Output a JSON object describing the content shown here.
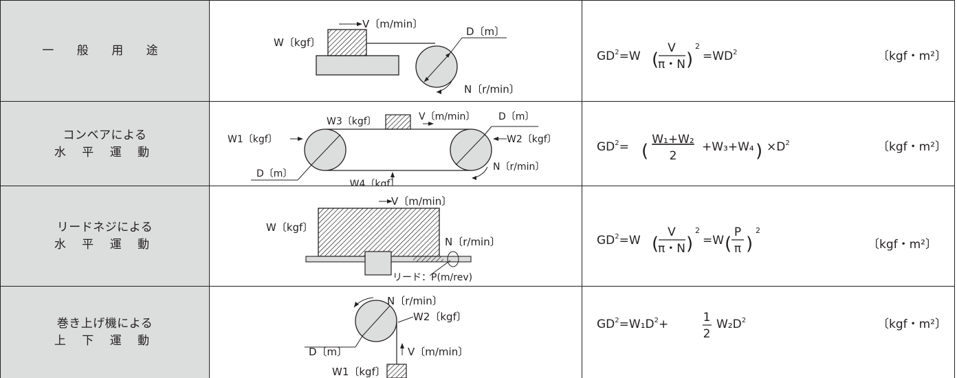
{
  "rows": [
    {
      "label_lines": [
        "一 般 用 途"
      ],
      "figure": {
        "speed": "V〔m/min〕",
        "mass": "W〔kgf〕",
        "diameter": "D〔m〕",
        "rpm": "N〔r/min〕"
      },
      "formula": {
        "lhs": "GD",
        "eq": "=W",
        "frac_num": "V",
        "frac_den": "π・N",
        "power": "2",
        "rhs": "=WD",
        "rhs_pow": "2"
      },
      "unit": "〔kgf・m²〕"
    },
    {
      "label_lines": [
        "コンベアによる",
        "水 平 運 動"
      ],
      "figure": {
        "w3": "W3〔kgf〕",
        "speed": "V〔m/min〕",
        "diameter_top": "D〔m〕",
        "w1": "W1〔kgf〕",
        "w2": "W2〔kgf〕",
        "diameter_bottom": "D〔m〕",
        "rpm": "N〔r/min〕",
        "w4": "W4〔kgf〕"
      },
      "formula": {
        "lhs": "GD",
        "eq": "=",
        "frac_num": "W₁+W₂",
        "frac_den": "2",
        "plus": "+W₃+W₄",
        "times": "×D",
        "rhs_pow": "2"
      },
      "unit": "〔kgf・m²〕"
    },
    {
      "label_lines": [
        "リードネジによる",
        "水 平 運 動"
      ],
      "figure": {
        "speed": "V〔m/min〕",
        "mass": "W〔kgf〕",
        "rpm": "N〔r/min〕",
        "lead": "リード：P(m/rev)"
      },
      "formula": {
        "lhs": "GD",
        "eq": "=W",
        "frac_num": "V",
        "frac_den": "π・N",
        "power": "2",
        "eq2": "=W",
        "frac2_num": "P",
        "frac2_den": "π",
        "power2": "2"
      },
      "unit": "〔kgf・m²〕"
    },
    {
      "label_lines": [
        "巻き上げ機による",
        "上 下 運 動"
      ],
      "figure": {
        "rpm": "N〔r/min〕",
        "w2": "W2〔kgf〕",
        "diameter": "D〔m〕",
        "speed": "V〔m/min〕",
        "w1": "W1〔kgf〕"
      },
      "formula": {
        "lhs": "GD",
        "eq": "=W₁D",
        "plus": "+",
        "frac_num": "1",
        "frac_den": "2",
        "tail": "W₂D"
      },
      "unit": "〔kgf・m²〕"
    }
  ]
}
